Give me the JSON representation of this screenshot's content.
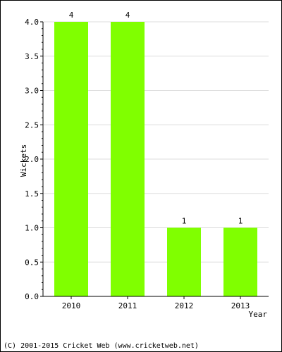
{
  "chart_data": {
    "type": "bar",
    "categories": [
      "2010",
      "2011",
      "2012",
      "2013"
    ],
    "values": [
      4,
      4,
      1,
      1
    ],
    "data_labels": [
      "4",
      "4",
      "1",
      "1"
    ],
    "xlabel": "Year",
    "ylabel": "Wickets",
    "ylim": [
      0,
      4
    ],
    "yticks": [
      "0.0",
      "0.5",
      "1.0",
      "1.5",
      "2.0",
      "2.5",
      "3.0",
      "3.5",
      "4.0"
    ],
    "grid": true,
    "legend": "none",
    "bar_color": "#80ff00",
    "grid_color": "#dddddd"
  },
  "footer": {
    "copyright": "(C) 2001-2015 Cricket Web (www.cricketweb.net)"
  }
}
